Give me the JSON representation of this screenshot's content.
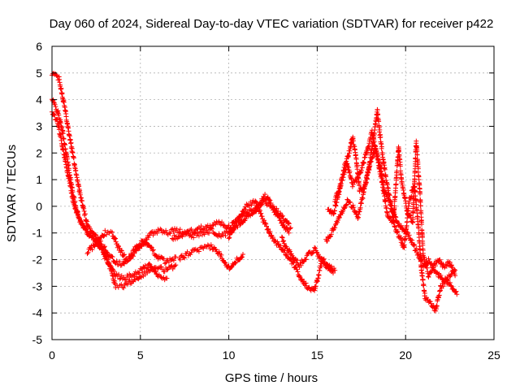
{
  "chart_data": {
    "type": "scatter",
    "title": "Day 060 of 2024, Sidereal Day-to-day VTEC variation (SDTVAR) for receiver p422",
    "xlabel": "GPS time / hours",
    "ylabel": "SDTVAR / TECUs",
    "xlim": [
      0,
      25
    ],
    "ylim": [
      -5,
      6
    ],
    "xticks": [
      0,
      5,
      10,
      15,
      20,
      25
    ],
    "yticks": [
      -5,
      -4,
      -3,
      -2,
      -1,
      0,
      1,
      2,
      3,
      4,
      5,
      6
    ],
    "grid": true,
    "marker": "+",
    "series_color": "#ff0000",
    "series": [
      {
        "name": "s1",
        "points": [
          [
            0.0,
            4.0
          ],
          [
            0.3,
            3.6
          ],
          [
            0.6,
            2.8
          ],
          [
            0.9,
            1.6
          ],
          [
            1.2,
            0.4
          ],
          [
            1.5,
            -0.4
          ],
          [
            1.8,
            -0.8
          ],
          [
            2.2,
            -1.1
          ],
          [
            2.6,
            -1.4
          ],
          [
            3.0,
            -1.8
          ],
          [
            3.3,
            -2.3
          ],
          [
            3.6,
            -3.0
          ],
          [
            4.0,
            -3.0
          ],
          [
            4.5,
            -2.8
          ],
          [
            5.0,
            -2.6
          ],
          [
            5.5,
            -2.4
          ],
          [
            6.0,
            -2.3
          ],
          [
            6.5,
            -2.4
          ],
          [
            7.0,
            -2.2
          ]
        ]
      },
      {
        "name": "s2",
        "points": [
          [
            0.0,
            5.0
          ],
          [
            0.4,
            4.8
          ],
          [
            0.7,
            3.8
          ],
          [
            1.0,
            2.6
          ],
          [
            1.3,
            1.5
          ],
          [
            1.6,
            0.4
          ],
          [
            2.0,
            -0.7
          ],
          [
            2.4,
            -1.1
          ],
          [
            2.8,
            -1.4
          ],
          [
            3.2,
            -1.8
          ],
          [
            3.6,
            -2.1
          ],
          [
            4.0,
            -2.2
          ],
          [
            4.4,
            -1.9
          ],
          [
            4.8,
            -1.5
          ],
          [
            5.2,
            -1.3
          ],
          [
            5.6,
            -1.6
          ],
          [
            6.0,
            -1.9
          ],
          [
            6.5,
            -2.1
          ],
          [
            7.0,
            -1.9
          ]
        ]
      },
      {
        "name": "s3",
        "points": [
          [
            0.0,
            3.5
          ],
          [
            0.3,
            3.2
          ],
          [
            0.6,
            2.2
          ],
          [
            0.9,
            1.2
          ],
          [
            1.2,
            0.2
          ],
          [
            1.6,
            -0.6
          ],
          [
            2.0,
            -1.0
          ],
          [
            2.4,
            -1.2
          ],
          [
            2.8,
            -1.6
          ],
          [
            3.2,
            -2.2
          ],
          [
            3.6,
            -2.6
          ],
          [
            4.0,
            -2.7
          ],
          [
            4.5,
            -2.6
          ],
          [
            5.0,
            -2.4
          ],
          [
            5.5,
            -2.2
          ],
          [
            6.0,
            -2.6
          ],
          [
            6.5,
            -2.7
          ]
        ]
      },
      {
        "name": "s4",
        "points": [
          [
            2.0,
            -1.7
          ],
          [
            2.5,
            -1.4
          ],
          [
            3.0,
            -1.0
          ],
          [
            3.4,
            -1.0
          ],
          [
            3.8,
            -1.6
          ],
          [
            4.2,
            -2.0
          ],
          [
            4.6,
            -1.8
          ],
          [
            5.0,
            -1.5
          ],
          [
            5.5,
            -1.1
          ],
          [
            6.0,
            -0.9
          ],
          [
            6.5,
            -1.0
          ],
          [
            7.0,
            -0.9
          ],
          [
            7.5,
            -1.0
          ],
          [
            8.0,
            -0.9
          ],
          [
            8.5,
            -0.8
          ],
          [
            9.0,
            -0.7
          ],
          [
            9.5,
            -0.6
          ],
          [
            10.0,
            -0.8
          ],
          [
            10.5,
            -0.5
          ],
          [
            11.0,
            -0.3
          ],
          [
            11.5,
            -0.1
          ],
          [
            12.0,
            0.2
          ],
          [
            12.5,
            0.0
          ],
          [
            13.0,
            -0.4
          ],
          [
            13.5,
            -0.8
          ]
        ]
      },
      {
        "name": "s5",
        "points": [
          [
            7.2,
            -2.0
          ],
          [
            7.6,
            -1.8
          ],
          [
            8.0,
            -1.7
          ],
          [
            8.5,
            -1.6
          ],
          [
            9.0,
            -1.5
          ],
          [
            9.5,
            -1.8
          ],
          [
            10.0,
            -2.3
          ],
          [
            10.5,
            -2.0
          ],
          [
            10.8,
            -1.8
          ]
        ]
      },
      {
        "name": "s6",
        "points": [
          [
            6.8,
            -1.2
          ],
          [
            7.2,
            -1.1
          ],
          [
            7.6,
            -1.0
          ],
          [
            8.0,
            -1.1
          ],
          [
            8.5,
            -1.0
          ],
          [
            9.0,
            -0.9
          ],
          [
            9.5,
            -1.1
          ],
          [
            10.0,
            -1.0
          ],
          [
            10.5,
            -0.7
          ],
          [
            11.0,
            -0.4
          ],
          [
            11.5,
            -0.2
          ],
          [
            12.0,
            0.4
          ],
          [
            12.3,
            0.2
          ],
          [
            12.6,
            -0.2
          ],
          [
            13.0,
            -0.6
          ],
          [
            13.4,
            -1.0
          ]
        ]
      },
      {
        "name": "s7",
        "points": [
          [
            10.0,
            -1.2
          ],
          [
            10.5,
            -0.5
          ],
          [
            11.0,
            0.0
          ],
          [
            11.5,
            0.2
          ],
          [
            12.0,
            -0.6
          ],
          [
            12.5,
            -1.2
          ],
          [
            13.0,
            -1.6
          ],
          [
            13.5,
            -2.0
          ],
          [
            14.0,
            -2.6
          ],
          [
            14.4,
            -3.0
          ],
          [
            14.8,
            -3.2
          ],
          [
            15.0,
            -2.8
          ],
          [
            15.3,
            -2.0
          ],
          [
            15.6,
            -2.2
          ],
          [
            16.0,
            -2.4
          ]
        ]
      },
      {
        "name": "s8",
        "points": [
          [
            13.0,
            -1.2
          ],
          [
            13.5,
            -1.8
          ],
          [
            14.0,
            -2.2
          ],
          [
            14.5,
            -1.8
          ],
          [
            14.9,
            -1.6
          ],
          [
            15.2,
            -2.0
          ],
          [
            15.6,
            -2.3
          ],
          [
            15.9,
            -2.5
          ]
        ]
      },
      {
        "name": "s9",
        "points": [
          [
            15.5,
            -1.3
          ],
          [
            15.8,
            -1.0
          ],
          [
            16.1,
            -0.6
          ],
          [
            16.4,
            -0.2
          ],
          [
            16.7,
            0.2
          ],
          [
            17.0,
            0.0
          ],
          [
            17.3,
            -0.4
          ],
          [
            17.6,
            0.4
          ],
          [
            17.9,
            1.4
          ],
          [
            18.2,
            2.6
          ],
          [
            18.4,
            3.6
          ],
          [
            18.6,
            2.4
          ],
          [
            18.9,
            1.0
          ],
          [
            19.2,
            0.0
          ],
          [
            19.5,
            -0.6
          ],
          [
            19.8,
            -0.8
          ],
          [
            20.1,
            -1.0
          ],
          [
            20.4,
            -1.4
          ],
          [
            20.7,
            -1.8
          ],
          [
            21.0,
            -2.2
          ],
          [
            21.3,
            -2.0
          ],
          [
            21.6,
            -2.4
          ],
          [
            21.9,
            -2.6
          ],
          [
            22.2,
            -2.8
          ],
          [
            22.5,
            -2.6
          ],
          [
            22.8,
            -2.4
          ]
        ]
      },
      {
        "name": "s10",
        "points": [
          [
            15.6,
            -0.1
          ],
          [
            15.9,
            -0.3
          ],
          [
            16.2,
            0.4
          ],
          [
            16.5,
            1.4
          ],
          [
            16.8,
            2.0
          ],
          [
            17.0,
            2.6
          ],
          [
            17.2,
            1.8
          ],
          [
            17.4,
            0.6
          ],
          [
            17.7,
            0.8
          ],
          [
            18.0,
            1.6
          ],
          [
            18.3,
            2.2
          ],
          [
            18.6,
            1.4
          ],
          [
            18.8,
            0.6
          ],
          [
            19.1,
            0.2
          ],
          [
            19.4,
            -0.8
          ],
          [
            19.7,
            -1.2
          ],
          [
            19.9,
            -1.6
          ],
          [
            20.2,
            0.2
          ],
          [
            20.5,
            0.8
          ],
          [
            20.7,
            -0.6
          ],
          [
            20.9,
            -2.4
          ],
          [
            21.1,
            -3.4
          ],
          [
            21.4,
            -3.6
          ],
          [
            21.7,
            -3.9
          ],
          [
            22.0,
            -3.0
          ],
          [
            22.3,
            -2.8
          ],
          [
            22.6,
            -3.0
          ],
          [
            22.9,
            -3.3
          ]
        ]
      },
      {
        "name": "s11",
        "points": [
          [
            16.0,
            0.2
          ],
          [
            16.4,
            1.0
          ],
          [
            16.7,
            1.6
          ],
          [
            17.0,
            0.8
          ],
          [
            17.4,
            1.2
          ],
          [
            17.8,
            2.0
          ],
          [
            18.1,
            2.8
          ],
          [
            18.4,
            1.8
          ],
          [
            18.7,
            0.8
          ],
          [
            19.0,
            -0.4
          ],
          [
            19.3,
            -0.6
          ],
          [
            19.6,
            2.2
          ],
          [
            19.8,
            0.8
          ],
          [
            20.1,
            -0.2
          ],
          [
            20.4,
            -0.6
          ],
          [
            20.6,
            2.4
          ],
          [
            20.8,
            0.6
          ],
          [
            21.0,
            -1.8
          ],
          [
            21.3,
            -2.6
          ],
          [
            21.6,
            -2.2
          ],
          [
            21.9,
            -2.0
          ],
          [
            22.2,
            -2.3
          ],
          [
            22.5,
            -2.1
          ],
          [
            22.8,
            -2.6
          ]
        ]
      }
    ]
  }
}
